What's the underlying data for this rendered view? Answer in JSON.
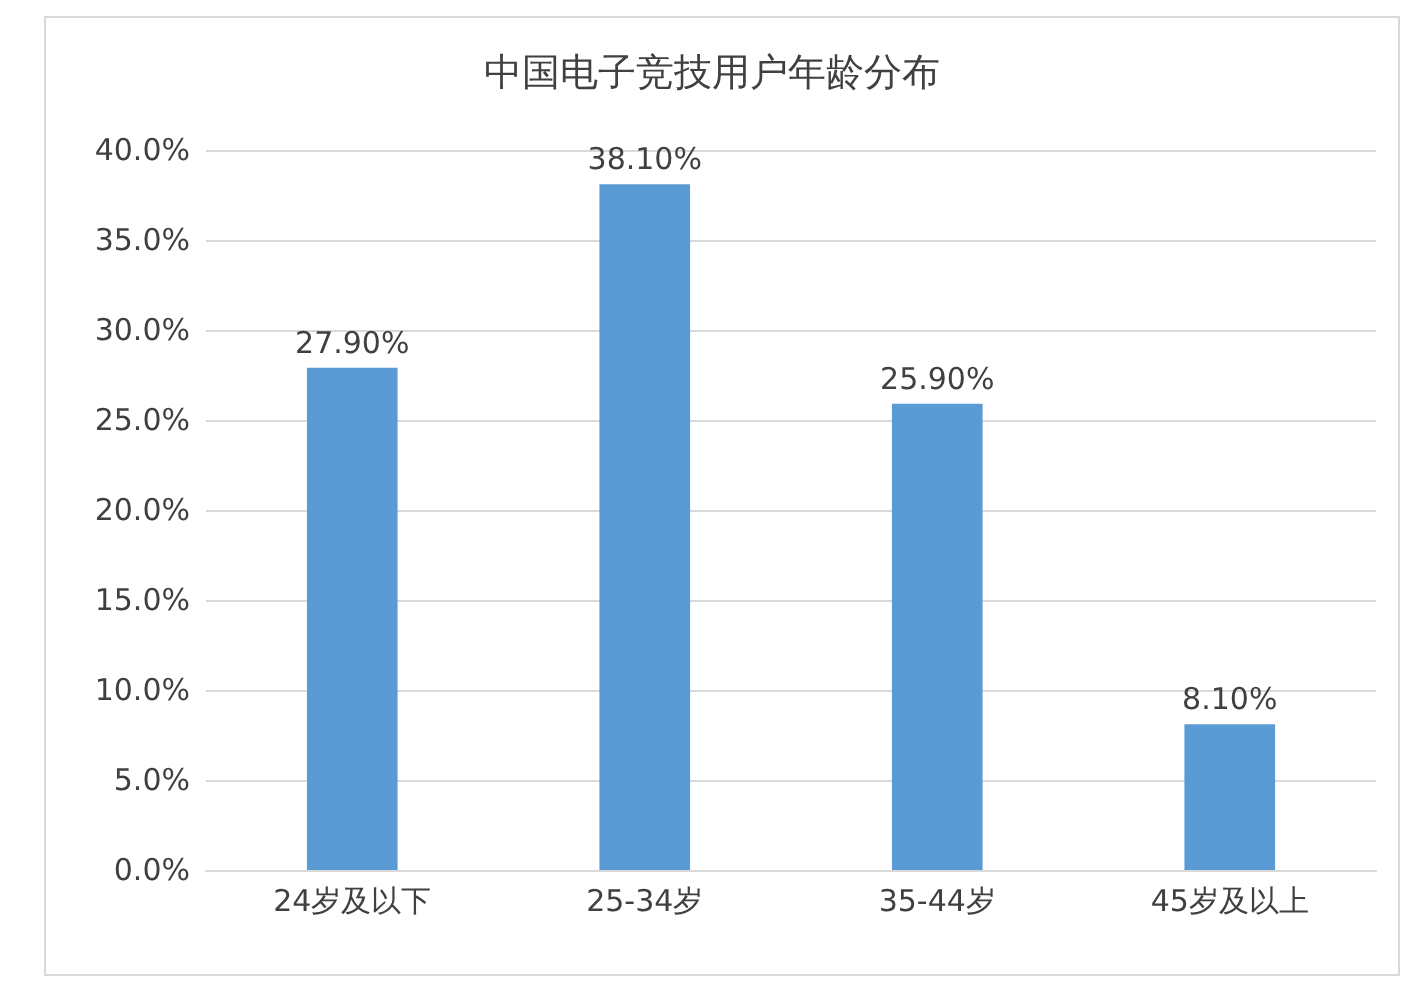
{
  "chart_data": {
    "type": "bar",
    "title": "中国电子竞技用户年龄分布",
    "categories": [
      "24岁及以下",
      "25-34岁",
      "35-44岁",
      "45岁及以上"
    ],
    "values": [
      27.9,
      38.1,
      25.9,
      8.1
    ],
    "value_labels": [
      "27.90%",
      "38.10%",
      "25.90%",
      "8.10%"
    ],
    "color": "#5b9bd5",
    "ylim": [
      0,
      40
    ],
    "yticks": [
      {
        "value": 0,
        "label": "0.0%"
      },
      {
        "value": 5,
        "label": "5.0%"
      },
      {
        "value": 10,
        "label": "10.0%"
      },
      {
        "value": 15,
        "label": "15.0%"
      },
      {
        "value": 20,
        "label": "20.0%"
      },
      {
        "value": 25,
        "label": "25.0%"
      },
      {
        "value": 30,
        "label": "30.0%"
      },
      {
        "value": 35,
        "label": "35.0%"
      },
      {
        "value": 40,
        "label": "40.0%"
      }
    ],
    "grid": "y"
  }
}
